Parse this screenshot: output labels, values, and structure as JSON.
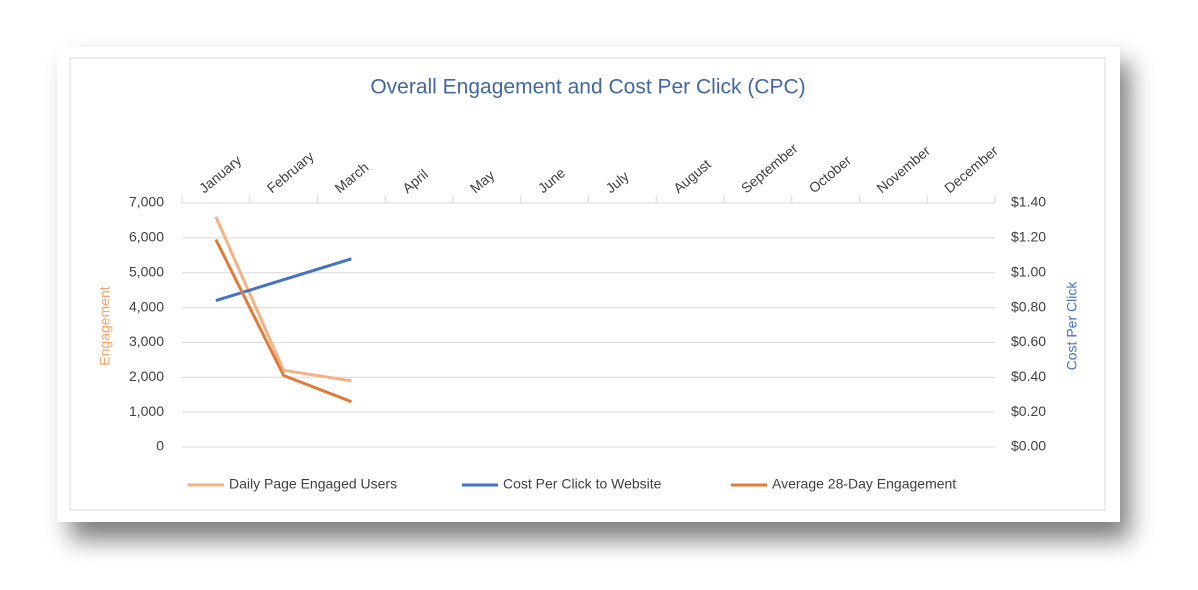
{
  "chart_data": {
    "type": "line",
    "title": "Overall Engagement and Cost Per Click (CPC)",
    "ylabel": "Engagement",
    "y2label": "Cost Per Click",
    "categories": [
      "January",
      "February",
      "March",
      "April",
      "May",
      "June",
      "July",
      "August",
      "September",
      "October",
      "November",
      "December"
    ],
    "series": [
      {
        "name": "Daily Page Engaged Users",
        "color": "#f4b183",
        "values": [
          6600,
          2200,
          1900,
          null,
          null,
          null,
          null,
          null,
          null,
          null,
          null,
          null
        ]
      },
      {
        "name": "Cost Per Click to Website",
        "color": "#4472c4",
        "axis": "y2",
        "values": [
          0.84,
          0.96,
          1.08,
          null,
          null,
          null,
          null,
          null,
          null,
          null,
          null,
          null
        ]
      },
      {
        "name": "Average 28-Day Engagement",
        "color": "#e07b39",
        "values": [
          5950,
          2050,
          1300,
          null,
          null,
          null,
          null,
          null,
          null,
          null,
          null,
          null
        ]
      }
    ],
    "ylim": [
      0,
      7000
    ],
    "yticks": [
      0,
      {
        "value": 1000,
        "label": "1,000"
      },
      {
        "value": 2000,
        "label": "2,000"
      },
      {
        "value": 3000,
        "label": "3,000"
      },
      {
        "value": 4000,
        "label": "4,000"
      },
      {
        "value": 5000,
        "label": "5,000"
      },
      {
        "value": 6000,
        "label": "6,000"
      },
      {
        "value": 7000,
        "label": "7,000"
      }
    ],
    "y2lim": [
      0,
      1.4
    ],
    "y2ticks": [
      {
        "value": 0,
        "label": "$0.00"
      },
      {
        "value": 0.2,
        "label": "$0.20"
      },
      {
        "value": 0.4,
        "label": "$0.40"
      },
      {
        "value": 0.6,
        "label": "$0.60"
      },
      {
        "value": 0.8,
        "label": "$0.80"
      },
      {
        "value": 1.0,
        "label": "$1.00"
      },
      {
        "value": 1.2,
        "label": "$1.20"
      },
      {
        "value": 1.4,
        "label": "$1.40"
      }
    ],
    "grid": true,
    "legend": "bottom",
    "x_axis_position": "top"
  }
}
